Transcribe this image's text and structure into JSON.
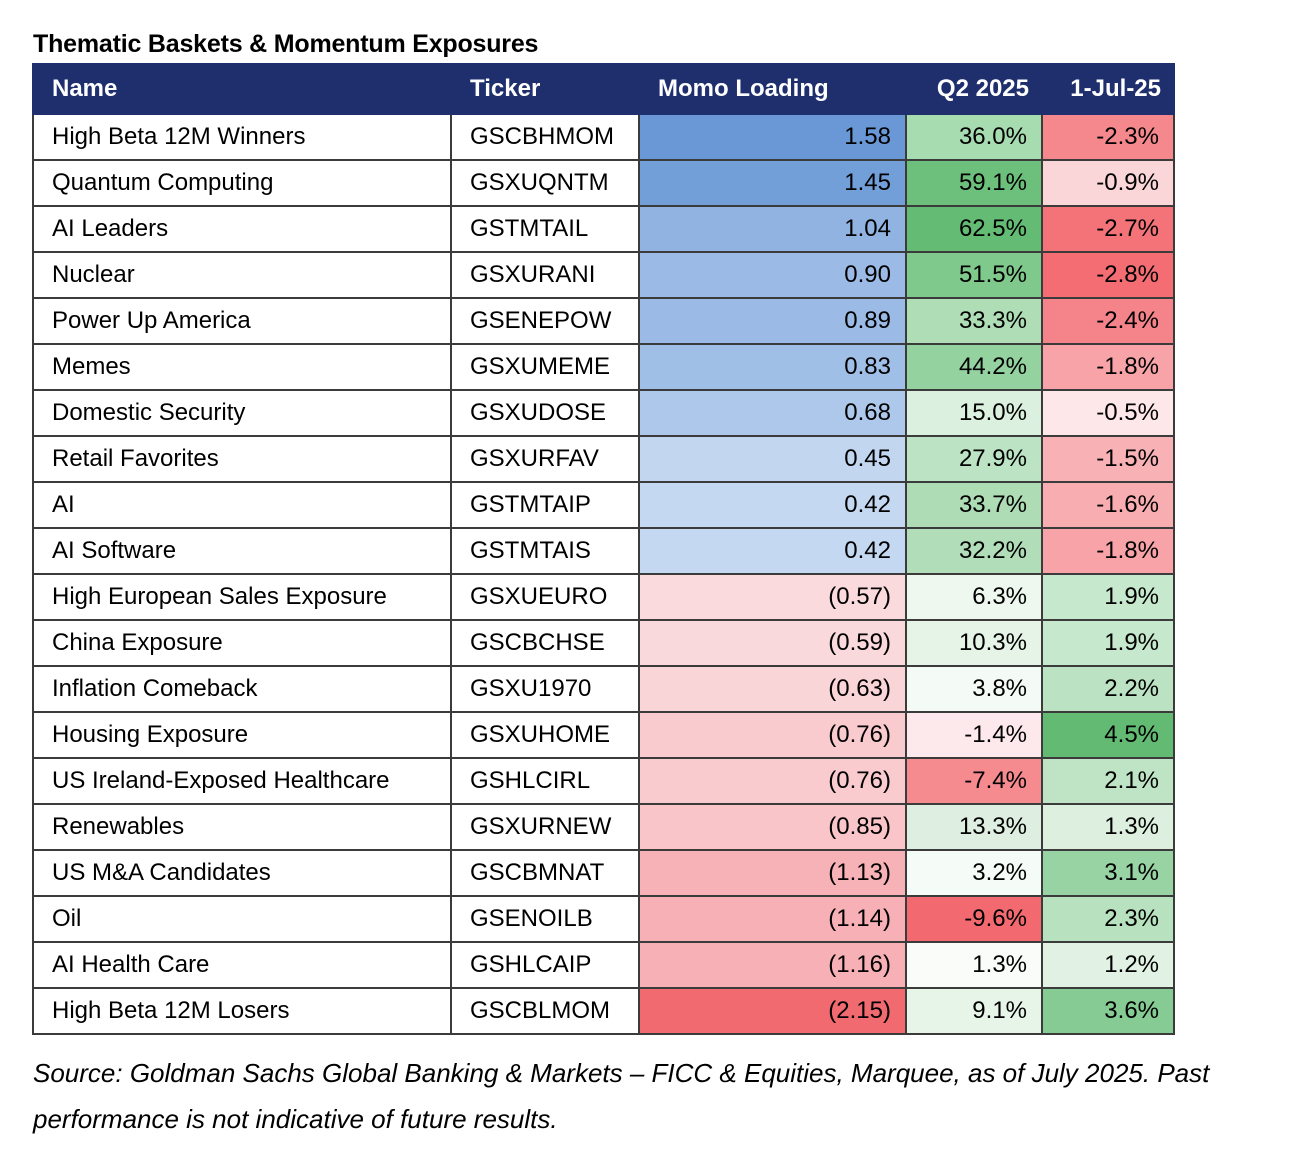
{
  "title": "Thematic Baskets & Momentum Exposures",
  "columns": [
    "Name",
    "Ticker",
    "Momo Loading",
    "Q2 2025",
    "1-Jul-25"
  ],
  "rows": [
    {
      "name": "High Beta 12M Winners",
      "ticker": "GSCBHMOM",
      "momo": "1.58",
      "q2": "36.0%",
      "jul": "-2.3%",
      "momo_bg": "#6a98d6",
      "q2_bg": "#a7dbb0",
      "jul_bg": "#f5888d"
    },
    {
      "name": "Quantum Computing",
      "ticker": "GSXUQNTM",
      "momo": "1.45",
      "q2": "59.1%",
      "jul": "-0.9%",
      "momo_bg": "#739fd9",
      "q2_bg": "#6cc07b",
      "jul_bg": "#fbd6d9"
    },
    {
      "name": "AI Leaders",
      "ticker": "GSTMTAIL",
      "momo": "1.04",
      "q2": "62.5%",
      "jul": "-2.7%",
      "momo_bg": "#90b3e2",
      "q2_bg": "#64bc74",
      "jul_bg": "#f47378"
    },
    {
      "name": "Nuclear",
      "ticker": "GSXURANI",
      "momo": "0.90",
      "q2": "51.5%",
      "jul": "-2.8%",
      "momo_bg": "#9bbae5",
      "q2_bg": "#80c98d",
      "jul_bg": "#f36d73"
    },
    {
      "name": "Power Up America",
      "ticker": "GSENEPOW",
      "momo": "0.89",
      "q2": "33.3%",
      "jul": "-2.4%",
      "momo_bg": "#9bbbe6",
      "q2_bg": "#aeddb6",
      "jul_bg": "#f5838a"
    },
    {
      "name": "Memes",
      "ticker": "GSXUMEME",
      "momo": "0.83",
      "q2": "44.2%",
      "jul": "-1.8%",
      "momo_bg": "#a0bfe7",
      "q2_bg": "#94d2a0",
      "jul_bg": "#f7a3a8"
    },
    {
      "name": "Domestic Security",
      "ticker": "GSXUDOSE",
      "momo": "0.68",
      "q2": "15.0%",
      "jul": "-0.5%",
      "momo_bg": "#adc8ea",
      "q2_bg": "#dbf0de",
      "jul_bg": "#fde7e9"
    },
    {
      "name": "Retail Favorites",
      "ticker": "GSXURFAV",
      "momo": "0.45",
      "q2": "27.9%",
      "jul": "-1.5%",
      "momo_bg": "#c2d6f0",
      "q2_bg": "#bce3c3",
      "jul_bg": "#f8b2b6"
    },
    {
      "name": "AI",
      "ticker": "GSTMTAIP",
      "momo": "0.42",
      "q2": "33.7%",
      "jul": "-1.6%",
      "momo_bg": "#c5d8f1",
      "q2_bg": "#addcb5",
      "jul_bg": "#f8adb1"
    },
    {
      "name": "AI Software",
      "ticker": "GSTMTAIS",
      "momo": "0.42",
      "q2": "32.2%",
      "jul": "-1.8%",
      "momo_bg": "#c5d8f1",
      "q2_bg": "#b1deb9",
      "jul_bg": "#f7a3a8"
    },
    {
      "name": "High European Sales Exposure",
      "ticker": "GSXUEURO",
      "momo": "(0.57)",
      "q2": "6.3%",
      "jul": "1.9%",
      "momo_bg": "#fadadd",
      "q2_bg": "#eef8ef",
      "jul_bg": "#c6e8cc"
    },
    {
      "name": "China Exposure",
      "ticker": "GSCBCHSE",
      "momo": "(0.59)",
      "q2": "10.3%",
      "jul": "1.9%",
      "momo_bg": "#fad9dc",
      "q2_bg": "#e5f4e7",
      "jul_bg": "#c6e8cc"
    },
    {
      "name": "Inflation Comeback",
      "ticker": "GSXU1970",
      "momo": "(0.63)",
      "q2": "3.8%",
      "jul": "2.2%",
      "momo_bg": "#fad5d8",
      "q2_bg": "#f4faf5",
      "jul_bg": "#bbe2c2"
    },
    {
      "name": "Housing Exposure",
      "ticker": "GSXUHOME",
      "momo": "(0.76)",
      "q2": "-1.4%",
      "jul": "4.5%",
      "momo_bg": "#f9cbcf",
      "q2_bg": "#fde9eb",
      "jul_bg": "#63bb73"
    },
    {
      "name": "US Ireland-Exposed Healthcare",
      "ticker": "GSHLCIRL",
      "momo": "(0.76)",
      "q2": "-7.4%",
      "jul": "2.1%",
      "momo_bg": "#f9cbcf",
      "q2_bg": "#f58a8f",
      "jul_bg": "#bfe4c5"
    },
    {
      "name": "Renewables",
      "ticker": "GSXURNEW",
      "momo": "(0.85)",
      "q2": "13.3%",
      "jul": "1.3%",
      "momo_bg": "#f9c5c9",
      "q2_bg": "#deefe1",
      "jul_bg": "#ddf0e0"
    },
    {
      "name": "US M&A Candidates",
      "ticker": "GSCBMNAT",
      "momo": "(1.13)",
      "q2": "3.2%",
      "jul": "3.1%",
      "momo_bg": "#f7b2b7",
      "q2_bg": "#f5fbf6",
      "jul_bg": "#97d3a3"
    },
    {
      "name": "Oil",
      "ticker": "GSENOILB",
      "momo": "(1.14)",
      "q2": "-9.6%",
      "jul": "2.3%",
      "momo_bg": "#f7b1b6",
      "q2_bg": "#f26a70",
      "jul_bg": "#b7e1bf"
    },
    {
      "name": "AI Health Care",
      "ticker": "GSHLCAIP",
      "momo": "(1.16)",
      "q2": "1.3%",
      "jul": "1.2%",
      "momo_bg": "#f7b0b5",
      "q2_bg": "#f9fcf9",
      "jul_bg": "#e1f2e4"
    },
    {
      "name": "High Beta 12M Losers",
      "ticker": "GSCBLMOM",
      "momo": "(2.15)",
      "q2": "9.1%",
      "jul": "3.6%",
      "momo_bg": "#f06a70",
      "q2_bg": "#e7f5e9",
      "jul_bg": "#86cb93"
    }
  ],
  "source_note": "Source: Goldman Sachs Global Banking & Markets – FICC & Equities, Marquee, as of July 2025. Past performance is not indicative of future results."
}
